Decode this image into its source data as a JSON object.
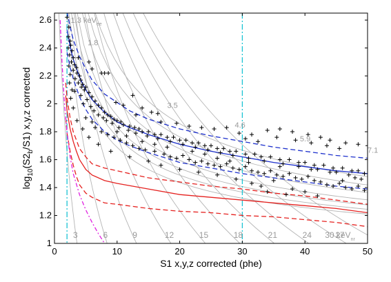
{
  "chart_data": {
    "type": "scatter",
    "xlabel": "S1 x,y,z corrected (phe)",
    "ylabel_parts": {
      "a": "log",
      "b": "10",
      "c": "(S2",
      "d": "b",
      "e": "/S1) x,y,z corrected"
    },
    "xlim": [
      0,
      50
    ],
    "ylim": [
      1,
      2.65
    ],
    "xticks": [
      0,
      10,
      20,
      30,
      40,
      50
    ],
    "yticks": [
      1,
      1.2,
      1.4,
      1.6,
      1.8,
      2,
      2.2,
      2.4,
      2.6
    ],
    "xtick_labels": [
      "0",
      "10",
      "20",
      "30",
      "40",
      "50"
    ],
    "ytick_labels": [
      "1",
      "1.2",
      "1.4",
      "1.6",
      "1.8",
      "2",
      "2.2",
      "2.4",
      "2.6"
    ],
    "vlines": [
      {
        "name": "threshold-low",
        "x": 2,
        "color": "#19c3d3"
      },
      {
        "name": "threshold-high",
        "x": 30,
        "color": "#19c3d3"
      }
    ],
    "er_contour_labels": [
      {
        "text": "1.3 keV",
        "sub": "ee",
        "x": 2.6,
        "y": 2.6
      },
      {
        "text": "1.8",
        "x": 5.3,
        "y": 2.44
      },
      {
        "text": "3.5",
        "x": 18.0,
        "y": 1.99
      },
      {
        "text": "4.6",
        "x": 28.8,
        "y": 1.85
      },
      {
        "text": "5.9",
        "x": 39.2,
        "y": 1.75
      },
      {
        "text": "7.1",
        "x": 50.0,
        "y": 1.67
      }
    ],
    "nr_contour_labels": [
      {
        "text": "3",
        "x": 4.0
      },
      {
        "text": "6",
        "x": 8.8
      },
      {
        "text": "9",
        "x": 13.5
      },
      {
        "text": "12",
        "x": 19.0
      },
      {
        "text": "15",
        "x": 24.5
      },
      {
        "text": "18",
        "x": 30.0
      },
      {
        "text": "21",
        "x": 35.5
      },
      {
        "text": "24",
        "x": 41.0
      },
      {
        "text": "27",
        "x": 47.0
      },
      {
        "text": "30 keV",
        "sub": "nr",
        "x": 52.8
      }
    ],
    "colors": {
      "er_band": "#1c2fcc",
      "nr_band": "#e5201e",
      "contour": "#b4b4b4",
      "contour_label": "#9a9a9a",
      "magenta": "#e020e0",
      "points": "#000000"
    },
    "series": [
      {
        "role": "er_median",
        "style": "solid",
        "color": "#1c2fcc",
        "x": [
          2,
          2.5,
          3,
          4,
          5,
          6,
          8,
          10,
          12,
          15,
          20,
          25,
          30,
          35,
          40,
          45,
          50
        ],
        "y": [
          2.53,
          2.41,
          2.32,
          2.19,
          2.1,
          2.03,
          1.94,
          1.87,
          1.83,
          1.78,
          1.71,
          1.66,
          1.62,
          1.58,
          1.55,
          1.52,
          1.5
        ]
      },
      {
        "role": "er_upper",
        "style": "dashed",
        "color": "#1c2fcc",
        "x": [
          2,
          2.5,
          3,
          4,
          5,
          6,
          8,
          10,
          12,
          15,
          20,
          25,
          30,
          35,
          40,
          45,
          50
        ],
        "y": [
          2.66,
          2.55,
          2.46,
          2.34,
          2.25,
          2.17,
          2.07,
          2.01,
          1.95,
          1.89,
          1.82,
          1.77,
          1.73,
          1.69,
          1.66,
          1.63,
          1.61
        ]
      },
      {
        "role": "er_lower",
        "style": "dashed",
        "color": "#1c2fcc",
        "x": [
          2,
          2.5,
          3,
          4,
          5,
          6,
          8,
          10,
          12,
          15,
          20,
          25,
          30,
          35,
          40,
          45,
          50
        ],
        "y": [
          2.37,
          2.26,
          2.18,
          2.05,
          1.96,
          1.89,
          1.8,
          1.74,
          1.7,
          1.65,
          1.58,
          1.54,
          1.5,
          1.47,
          1.44,
          1.41,
          1.39
        ]
      },
      {
        "role": "nr_median",
        "style": "solid",
        "color": "#e5201e",
        "x": [
          1.8,
          2,
          2.5,
          3,
          3.5,
          4,
          5,
          6,
          8,
          10,
          15,
          20,
          25,
          30,
          35,
          40,
          45,
          50
        ],
        "y": [
          2.06,
          1.95,
          1.82,
          1.73,
          1.66,
          1.6,
          1.53,
          1.49,
          1.45,
          1.43,
          1.39,
          1.35,
          1.33,
          1.31,
          1.29,
          1.27,
          1.25,
          1.22
        ]
      },
      {
        "role": "nr_upper",
        "style": "dashed",
        "color": "#e5201e",
        "x": [
          1.8,
          2,
          2.5,
          3,
          3.5,
          4,
          5,
          6,
          8,
          10,
          15,
          20,
          25,
          30,
          35,
          40,
          45,
          50
        ],
        "y": [
          2.15,
          2.04,
          1.9,
          1.8,
          1.74,
          1.68,
          1.62,
          1.57,
          1.54,
          1.52,
          1.47,
          1.44,
          1.41,
          1.39,
          1.36,
          1.34,
          1.31,
          1.28
        ]
      },
      {
        "role": "nr_lower",
        "style": "dashed",
        "color": "#e5201e",
        "x": [
          1.8,
          2,
          2.5,
          3,
          3.5,
          4,
          5,
          6,
          8,
          10,
          15,
          20,
          25,
          30,
          35,
          40,
          45,
          50
        ],
        "y": [
          1.9,
          1.79,
          1.66,
          1.56,
          1.48,
          1.42,
          1.36,
          1.33,
          1.29,
          1.28,
          1.25,
          1.23,
          1.22,
          1.2,
          1.19,
          1.17,
          1.15,
          1.12
        ]
      },
      {
        "role": "magenta_cut",
        "style": "dashdot",
        "color": "#e020e0",
        "x": [
          0.9,
          1.2,
          1.6,
          2.0,
          2.5,
          3,
          4,
          5,
          6,
          7,
          8
        ],
        "y": [
          2.6,
          2.3,
          2.0,
          1.8,
          1.62,
          1.5,
          1.35,
          1.24,
          1.15,
          1.07,
          1.0
        ]
      }
    ],
    "points": [
      [
        2.0,
        2.62
      ],
      [
        2.3,
        2.55
      ],
      [
        2.2,
        2.48
      ],
      [
        2.5,
        2.45
      ],
      [
        2.6,
        2.42
      ],
      [
        2.2,
        2.4
      ],
      [
        2.8,
        2.38
      ],
      [
        2.4,
        2.35
      ],
      [
        3.0,
        2.33
      ],
      [
        2.7,
        2.3
      ],
      [
        3.2,
        2.28
      ],
      [
        2.3,
        2.27
      ],
      [
        3.5,
        2.26
      ],
      [
        3.0,
        2.24
      ],
      [
        3.6,
        2.22
      ],
      [
        2.5,
        2.21
      ],
      [
        4.0,
        2.2
      ],
      [
        3.3,
        2.18
      ],
      [
        4.2,
        2.17
      ],
      [
        3.8,
        2.15
      ],
      [
        4.5,
        2.14
      ],
      [
        5.0,
        2.12
      ],
      [
        4.8,
        2.1
      ],
      [
        3.2,
        2.09
      ],
      [
        5.5,
        2.08
      ],
      [
        4.2,
        2.06
      ],
      [
        6.0,
        2.05
      ],
      [
        5.2,
        2.03
      ],
      [
        6.5,
        2.02
      ],
      [
        4.6,
        2.0
      ],
      [
        7.0,
        1.99
      ],
      [
        5.8,
        1.98
      ],
      [
        7.5,
        1.97
      ],
      [
        6.3,
        1.95
      ],
      [
        8.0,
        1.94
      ],
      [
        7.0,
        1.92
      ],
      [
        8.5,
        1.92
      ],
      [
        9.0,
        1.91
      ],
      [
        7.8,
        1.9
      ],
      [
        9.5,
        1.89
      ],
      [
        8.3,
        1.88
      ],
      [
        10.0,
        1.88
      ],
      [
        10.6,
        1.87
      ],
      [
        9.2,
        1.86
      ],
      [
        11.0,
        1.85
      ],
      [
        12.0,
        1.84
      ],
      [
        10.3,
        1.83
      ],
      [
        12.8,
        1.83
      ],
      [
        13.5,
        1.82
      ],
      [
        11.8,
        1.81
      ],
      [
        14.0,
        1.8
      ],
      [
        15.0,
        1.8
      ],
      [
        13.0,
        1.79
      ],
      [
        16.0,
        1.78
      ],
      [
        17.0,
        1.78
      ],
      [
        14.8,
        1.77
      ],
      [
        18.0,
        1.76
      ],
      [
        19.0,
        1.76
      ],
      [
        16.5,
        1.75
      ],
      [
        20.0,
        1.74
      ],
      [
        21.0,
        1.74
      ],
      [
        18.5,
        1.73
      ],
      [
        22.0,
        1.72
      ],
      [
        23.0,
        1.72
      ],
      [
        20.5,
        1.71
      ],
      [
        24.0,
        1.7
      ],
      [
        25.0,
        1.7
      ],
      [
        22.5,
        1.69
      ],
      [
        26.0,
        1.68
      ],
      [
        27.0,
        1.68
      ],
      [
        24.5,
        1.67
      ],
      [
        28.0,
        1.66
      ],
      [
        29.0,
        1.66
      ],
      [
        26.5,
        1.65
      ],
      [
        30.5,
        1.64
      ],
      [
        32.0,
        1.64
      ],
      [
        28.5,
        1.63
      ],
      [
        33.0,
        1.62
      ],
      [
        34.5,
        1.62
      ],
      [
        31.0,
        1.61
      ],
      [
        36.0,
        1.6
      ],
      [
        37.5,
        1.6
      ],
      [
        33.5,
        1.59
      ],
      [
        39.0,
        1.58
      ],
      [
        40.0,
        1.58
      ],
      [
        36.5,
        1.57
      ],
      [
        41.5,
        1.56
      ],
      [
        43.0,
        1.56
      ],
      [
        39.0,
        1.55
      ],
      [
        44.5,
        1.54
      ],
      [
        46.0,
        1.54
      ],
      [
        42.0,
        1.53
      ],
      [
        47.5,
        1.52
      ],
      [
        48.5,
        1.52
      ],
      [
        45.0,
        1.51
      ],
      [
        49.5,
        1.5
      ],
      [
        47.0,
        1.49
      ],
      [
        48.0,
        1.47
      ],
      [
        49.0,
        1.46
      ],
      [
        46.0,
        1.45
      ],
      [
        7.5,
        2.22
      ],
      [
        8.0,
        2.22
      ],
      [
        8.6,
        2.22
      ],
      [
        6.0,
        2.25
      ],
      [
        5.5,
        2.3
      ],
      [
        3.8,
        2.33
      ],
      [
        4.3,
        2.12
      ],
      [
        12.5,
        2.06
      ],
      [
        14.0,
        1.97
      ],
      [
        15.5,
        1.94
      ],
      [
        9.8,
        2.01
      ],
      [
        11.0,
        1.99
      ],
      [
        16.5,
        1.93
      ],
      [
        13.0,
        1.92
      ],
      [
        17.0,
        1.87
      ],
      [
        19.5,
        1.86
      ],
      [
        21.5,
        1.84
      ],
      [
        23.5,
        1.83
      ],
      [
        25.5,
        1.82
      ],
      [
        27.5,
        1.83
      ],
      [
        29.5,
        1.79
      ],
      [
        31.5,
        1.78
      ],
      [
        34.0,
        1.81
      ],
      [
        36.0,
        1.82
      ],
      [
        38.0,
        1.8
      ],
      [
        40.5,
        1.78
      ],
      [
        42.5,
        1.76
      ],
      [
        44.0,
        1.74
      ],
      [
        46.5,
        1.72
      ],
      [
        48.5,
        1.71
      ],
      [
        50.0,
        1.7
      ],
      [
        45.5,
        1.68
      ],
      [
        43.5,
        1.7
      ],
      [
        41.0,
        1.72
      ],
      [
        38.5,
        1.74
      ],
      [
        35.5,
        1.76
      ],
      [
        32.5,
        1.73
      ],
      [
        30.5,
        1.75
      ],
      [
        6.5,
        1.83
      ],
      [
        7.5,
        1.8
      ],
      [
        8.5,
        1.78
      ],
      [
        9.5,
        1.76
      ],
      [
        10.5,
        1.74
      ],
      [
        11.5,
        1.72
      ],
      [
        12.5,
        1.7
      ],
      [
        13.5,
        1.68
      ],
      [
        14.5,
        1.67
      ],
      [
        16.0,
        1.66
      ],
      [
        17.5,
        1.64
      ],
      [
        18.5,
        1.62
      ],
      [
        19.5,
        1.61
      ],
      [
        20.5,
        1.63
      ],
      [
        21.5,
        1.6
      ],
      [
        22.5,
        1.58
      ],
      [
        23.5,
        1.59
      ],
      [
        24.5,
        1.57
      ],
      [
        25.5,
        1.56
      ],
      [
        26.5,
        1.55
      ],
      [
        27.5,
        1.57
      ],
      [
        28.5,
        1.54
      ],
      [
        29.5,
        1.53
      ],
      [
        30.5,
        1.55
      ],
      [
        31.5,
        1.52
      ],
      [
        32.5,
        1.51
      ],
      [
        33.5,
        1.5
      ],
      [
        34.5,
        1.52
      ],
      [
        35.5,
        1.49
      ],
      [
        36.5,
        1.48
      ],
      [
        37.5,
        1.5
      ],
      [
        38.5,
        1.47
      ],
      [
        39.5,
        1.46
      ],
      [
        40.5,
        1.48
      ],
      [
        41.5,
        1.45
      ],
      [
        42.5,
        1.44
      ],
      [
        43.5,
        1.42
      ],
      [
        44.5,
        1.41
      ],
      [
        45.5,
        1.43
      ],
      [
        46.5,
        1.4
      ],
      [
        47.5,
        1.39
      ],
      [
        48.5,
        1.41
      ],
      [
        49.5,
        1.38
      ],
      [
        35.0,
        1.45
      ],
      [
        33.0,
        1.41
      ],
      [
        38.0,
        1.39
      ],
      [
        40.0,
        1.37
      ],
      [
        42.0,
        1.34
      ],
      [
        37.0,
        1.35
      ],
      [
        34.0,
        1.37
      ],
      [
        31.5,
        1.43
      ],
      [
        29.0,
        1.46
      ],
      [
        26.0,
        1.49
      ],
      [
        23.0,
        1.51
      ],
      [
        20.0,
        1.53
      ],
      [
        17.0,
        1.56
      ],
      [
        15.0,
        1.59
      ],
      [
        12.0,
        1.62
      ],
      [
        9.0,
        1.66
      ],
      [
        7.0,
        1.71
      ],
      [
        5.5,
        1.76
      ],
      [
        4.5,
        1.82
      ],
      [
        3.6,
        1.88
      ],
      [
        3.0,
        1.97
      ],
      [
        2.6,
        2.04
      ],
      [
        2.8,
        2.1
      ],
      [
        2.4,
        2.15
      ],
      [
        5.0,
        1.9
      ],
      [
        6.0,
        1.87
      ],
      [
        10.0,
        1.8
      ],
      [
        11.5,
        1.77
      ],
      [
        14.0,
        1.73
      ],
      [
        16.0,
        1.71
      ],
      [
        18.0,
        1.69
      ],
      [
        22.0,
        1.66
      ],
      [
        24.0,
        1.64
      ],
      [
        26.0,
        1.61
      ],
      [
        28.0,
        1.59
      ],
      [
        31.0,
        1.58
      ],
      [
        36.0,
        1.55
      ],
      [
        41.0,
        1.53
      ],
      [
        44.0,
        1.51
      ]
    ]
  }
}
